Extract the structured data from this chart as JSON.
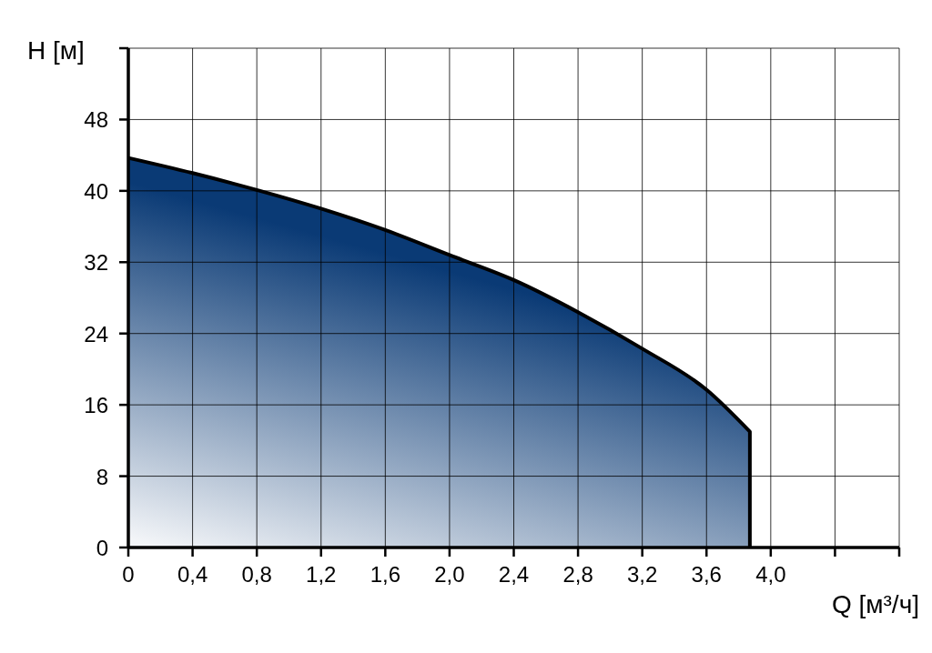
{
  "chart_data": {
    "type": "area",
    "xlabel": "Q [м³/ч]",
    "ylabel": "H [м]",
    "xlim": [
      0,
      4.8
    ],
    "xticks": [
      {
        "value": 0,
        "label": "0"
      },
      {
        "value": 0.4,
        "label": "0,4"
      },
      {
        "value": 0.8,
        "label": "0,8"
      },
      {
        "value": 1.2,
        "label": "1,2"
      },
      {
        "value": 1.6,
        "label": "1,6"
      },
      {
        "value": 2.0,
        "label": "2,0"
      },
      {
        "value": 2.4,
        "label": "2,4"
      },
      {
        "value": 2.8,
        "label": "2,8"
      },
      {
        "value": 3.2,
        "label": "3,2"
      },
      {
        "value": 3.6,
        "label": "3,6"
      },
      {
        "value": 4.0,
        "label": "4,0"
      },
      {
        "value": 4.4,
        "label": null
      },
      {
        "value": 4.8,
        "label": null
      }
    ],
    "ylim": [
      0,
      56
    ],
    "yticks": [
      0,
      8,
      16,
      24,
      32,
      40,
      48,
      {
        "value": 56,
        "label": null
      }
    ],
    "grid": true,
    "series": [
      {
        "color": "#0a3a75",
        "x": [
          0,
          0.4,
          0.8,
          1.2,
          1.6,
          2.0,
          2.4,
          2.8,
          3.2,
          3.6,
          3.87
        ],
        "values": [
          43.7,
          42,
          40.1,
          38,
          35.6,
          32.8,
          30,
          26.4,
          22.3,
          17.7,
          13
        ]
      }
    ]
  }
}
